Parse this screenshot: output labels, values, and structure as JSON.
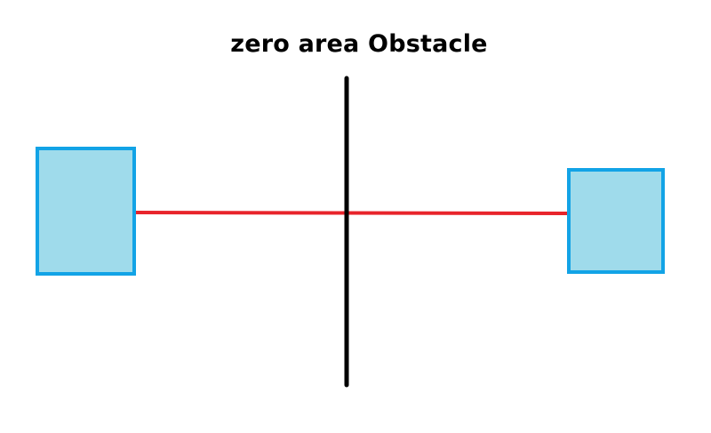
{
  "diagram": {
    "title": "zero area Obstacle",
    "colors": {
      "box_fill": "#9fdbeb",
      "box_stroke": "#12a3e6",
      "path_line": "#e8242b",
      "obstacle_line": "#000000",
      "background": "#ffffff"
    }
  }
}
